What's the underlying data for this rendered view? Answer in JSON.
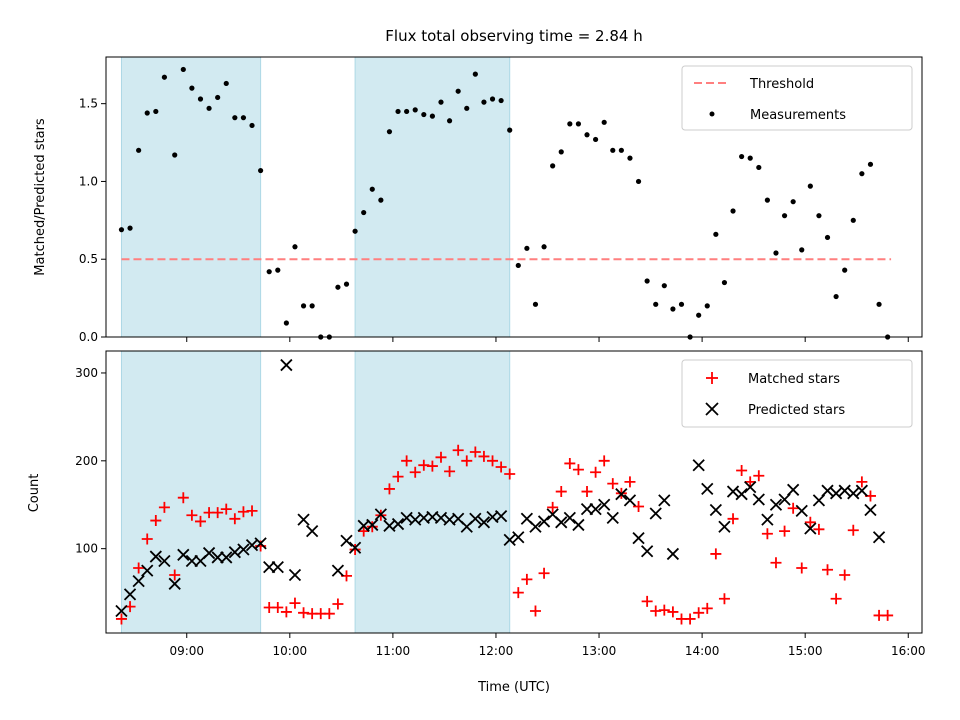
{
  "title": "Flux total observing time = 2.84 h",
  "colors": {
    "shade": "#add8e6",
    "threshold": "#ff7f7f",
    "matched": "#ff0000",
    "predicted": "#000000",
    "measurements": "#000000"
  },
  "chart_data": [
    {
      "type": "scatter",
      "panel": "top",
      "ylabel": "Matched/Predicted stars",
      "xlim": [
        "08:13",
        "16:08"
      ],
      "ylim": [
        0,
        1.8
      ],
      "yticks": [
        "0.0",
        "0.5",
        "1.0",
        "1.5"
      ],
      "legend": {
        "placement": "top-right",
        "entries": [
          "Threshold",
          "Measurements"
        ]
      },
      "threshold": {
        "name": "Threshold",
        "value": 0.5,
        "x_range": [
          "08:22",
          "15:50"
        ]
      },
      "shaded_intervals": [
        [
          "08:22",
          "09:43"
        ],
        [
          "10:38",
          "12:08"
        ]
      ],
      "series": [
        {
          "name": "Measurements",
          "x": [
            "08:22",
            "08:27",
            "08:32",
            "08:37",
            "08:42",
            "08:47",
            "08:53",
            "08:58",
            "09:03",
            "09:08",
            "09:13",
            "09:18",
            "09:23",
            "09:28",
            "09:33",
            "09:38",
            "09:43",
            "09:48",
            "09:53",
            "09:58",
            "10:03",
            "10:08",
            "10:13",
            "10:18",
            "10:23",
            "10:28",
            "10:33",
            "10:38",
            "10:43",
            "10:48",
            "10:53",
            "10:58",
            "11:03",
            "11:08",
            "11:13",
            "11:18",
            "11:23",
            "11:28",
            "11:33",
            "11:38",
            "11:43",
            "11:48",
            "11:53",
            "11:58",
            "12:03",
            "12:08",
            "12:13",
            "12:18",
            "12:23",
            "12:28",
            "12:33",
            "12:38",
            "12:43",
            "12:48",
            "12:53",
            "12:58",
            "13:03",
            "13:08",
            "13:13",
            "13:18",
            "13:23",
            "13:28",
            "13:33",
            "13:38",
            "13:43",
            "13:48",
            "13:53",
            "13:58",
            "14:03",
            "14:08",
            "14:13",
            "14:18",
            "14:23",
            "14:28",
            "14:33",
            "14:38",
            "14:43",
            "14:48",
            "14:53",
            "14:58",
            "15:03",
            "15:08",
            "15:13",
            "15:18",
            "15:23",
            "15:28",
            "15:33",
            "15:38",
            "15:43",
            "15:48"
          ],
          "values": [
            0.69,
            0.7,
            1.2,
            1.44,
            1.45,
            1.67,
            1.17,
            1.72,
            1.6,
            1.53,
            1.47,
            1.54,
            1.63,
            1.41,
            1.41,
            1.36,
            1.07,
            0.42,
            0.43,
            0.09,
            0.58,
            0.2,
            0.2,
            0.0,
            0.0,
            0.32,
            0.34,
            0.68,
            0.8,
            0.95,
            0.88,
            1.32,
            1.45,
            1.45,
            1.46,
            1.43,
            1.42,
            1.51,
            1.39,
            1.58,
            1.47,
            1.69,
            1.51,
            1.53,
            1.52,
            1.33,
            0.46,
            0.57,
            0.21,
            0.58,
            1.1,
            1.19,
            1.37,
            1.37,
            1.3,
            1.27,
            1.38,
            1.2,
            1.2,
            1.15,
            1.0,
            0.36,
            0.21,
            0.33,
            0.18,
            0.21,
            0.0,
            0.14,
            0.2,
            0.66,
            0.35,
            0.81,
            1.16,
            1.15,
            1.09,
            0.88,
            0.54,
            0.78,
            0.87,
            0.56,
            0.97,
            0.78,
            0.64,
            0.26,
            0.43,
            0.75,
            1.05,
            1.11,
            0.21,
            0.0
          ]
        }
      ]
    },
    {
      "type": "scatter",
      "panel": "bottom",
      "xlabel": "Time (UTC)",
      "ylabel": "Count",
      "xlim": [
        "08:13",
        "16:08"
      ],
      "ylim": [
        4,
        325
      ],
      "yticks": [
        "100",
        "200",
        "300"
      ],
      "xticks": [
        "09:00",
        "10:00",
        "11:00",
        "12:00",
        "13:00",
        "14:00",
        "15:00",
        "16:00"
      ],
      "legend": {
        "placement": "top-right",
        "entries": [
          "Matched stars",
          "Predicted stars"
        ]
      },
      "shaded_intervals": [
        [
          "08:22",
          "09:43"
        ],
        [
          "10:38",
          "12:08"
        ]
      ],
      "series": [
        {
          "name": "Matched stars",
          "marker": "plus",
          "x": [
            "08:22",
            "08:27",
            "08:32",
            "08:37",
            "08:42",
            "08:47",
            "08:53",
            "08:58",
            "09:03",
            "09:08",
            "09:13",
            "09:18",
            "09:23",
            "09:28",
            "09:33",
            "09:38",
            "09:43",
            "09:48",
            "09:53",
            "09:58",
            "10:03",
            "10:08",
            "10:13",
            "10:18",
            "10:23",
            "10:28",
            "10:33",
            "10:38",
            "10:43",
            "10:48",
            "10:53",
            "10:58",
            "11:03",
            "11:08",
            "11:13",
            "11:18",
            "11:23",
            "11:28",
            "11:33",
            "11:38",
            "11:43",
            "11:48",
            "11:53",
            "11:58",
            "12:03",
            "12:08",
            "12:13",
            "12:18",
            "12:23",
            "12:28",
            "12:33",
            "12:38",
            "12:43",
            "12:48",
            "12:53",
            "12:58",
            "13:03",
            "13:08",
            "13:13",
            "13:18",
            "13:23",
            "13:28",
            "13:33",
            "13:38",
            "13:43",
            "13:48",
            "13:53",
            "13:58",
            "14:03",
            "14:08",
            "14:13",
            "14:18",
            "14:23",
            "14:28",
            "14:33",
            "14:38",
            "14:43",
            "14:48",
            "14:53",
            "14:58",
            "15:03",
            "15:08",
            "15:13",
            "15:18",
            "15:23",
            "15:28",
            "15:33",
            "15:38",
            "15:43",
            "15:48"
          ],
          "values": [
            20,
            34,
            78,
            111,
            132,
            147,
            70,
            158,
            138,
            131,
            141,
            141,
            145,
            134,
            142,
            143,
            103,
            33,
            33,
            28,
            38,
            27,
            26,
            26,
            26,
            37,
            69,
            99,
            120,
            125,
            138,
            168,
            182,
            200,
            187,
            195,
            194,
            204,
            188,
            212,
            200,
            210,
            205,
            200,
            193,
            185,
            50,
            65,
            29,
            72,
            147,
            165,
            197,
            190,
            165,
            187,
            200,
            174,
            163,
            176,
            148,
            40,
            29,
            30,
            28,
            20,
            20,
            27,
            32,
            94,
            43,
            134,
            189,
            176,
            183,
            117,
            84,
            120,
            146,
            78,
            130,
            122,
            76,
            43,
            70,
            121,
            176,
            160,
            24,
            24
          ]
        },
        {
          "name": "Predicted stars",
          "marker": "x",
          "x": [
            "08:22",
            "08:27",
            "08:32",
            "08:37",
            "08:42",
            "08:47",
            "08:53",
            "08:58",
            "09:03",
            "09:08",
            "09:13",
            "09:18",
            "09:23",
            "09:28",
            "09:33",
            "09:38",
            "09:43",
            "09:48",
            "09:53",
            "09:58",
            "10:03",
            "10:08",
            "10:13",
            "10:18",
            "10:23",
            "10:28",
            "10:33",
            "10:38",
            "10:43",
            "10:48",
            "10:53",
            "10:58",
            "11:03",
            "11:08",
            "11:13",
            "11:18",
            "11:23",
            "11:28",
            "11:33",
            "11:38",
            "11:43",
            "11:48",
            "11:53",
            "11:58",
            "12:03",
            "12:08",
            "12:13",
            "12:18",
            "12:23",
            "12:28",
            "12:33",
            "12:38",
            "12:43",
            "12:48",
            "12:53",
            "12:58",
            "13:03",
            "13:08",
            "13:13",
            "13:18",
            "13:23",
            "13:28",
            "13:33",
            "13:38",
            "13:43",
            "13:48",
            "13:53",
            "13:58",
            "14:03",
            "14:08",
            "14:13",
            "14:18",
            "14:23",
            "14:28",
            "14:33",
            "14:38",
            "14:43",
            "14:48",
            "14:53",
            "14:58",
            "15:03",
            "15:08",
            "15:13",
            "15:18",
            "15:23",
            "15:28",
            "15:33",
            "15:38",
            "15:43",
            "15:48"
          ],
          "values": [
            29,
            48,
            63,
            75,
            91,
            86,
            60,
            93,
            86,
            86,
            95,
            90,
            90,
            96,
            99,
            104,
            106,
            79,
            79,
            309,
            70,
            133,
            120,
            null,
            null,
            75,
            109,
            101,
            126,
            127,
            139,
            126,
            128,
            135,
            133,
            135,
            136,
            135,
            133,
            134,
            125,
            134,
            130,
            136,
            137,
            110,
            113,
            134,
            125,
            131,
            139,
            130,
            135,
            127,
            145,
            145,
            150,
            135,
            162,
            155,
            112,
            97,
            140,
            155,
            94,
            null,
            null,
            195,
            168,
            144,
            125,
            165,
            162,
            170,
            156,
            133,
            150,
            156,
            167,
            143,
            123,
            155,
            166,
            163,
            166,
            163,
            166,
            144,
            113,
            null
          ]
        }
      ]
    }
  ]
}
